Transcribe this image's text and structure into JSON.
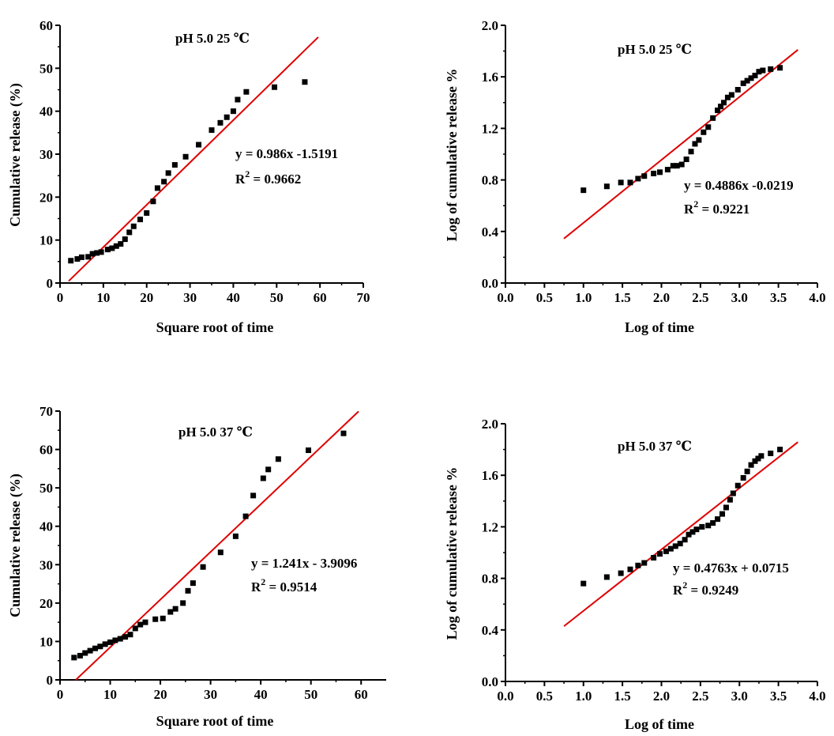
{
  "chart_data": [
    {
      "id": "p1",
      "type": "scatter",
      "title": "pH 5.0 25 ℃",
      "xlabel": "Square root of time",
      "ylabel": "Cumulative release (%)",
      "xlim": [
        0,
        70
      ],
      "ylim": [
        0,
        60
      ],
      "xticks": [
        0,
        10,
        20,
        30,
        40,
        50,
        60,
        70
      ],
      "yticks": [
        0,
        10,
        20,
        30,
        40,
        50,
        60
      ],
      "x_tick_labels": [
        "0",
        "10",
        "20",
        "30",
        "40",
        "50",
        "60",
        "70"
      ],
      "y_tick_labels": [
        "0",
        "10",
        "20",
        "30",
        "40",
        "50",
        "60"
      ],
      "grid": false,
      "points": [
        [
          2.5,
          5.2
        ],
        [
          4,
          5.6
        ],
        [
          5,
          6
        ],
        [
          6.5,
          6.1
        ],
        [
          7.5,
          6.8
        ],
        [
          8.5,
          7
        ],
        [
          9.5,
          7.2
        ],
        [
          11,
          7.8
        ],
        [
          12,
          8.1
        ],
        [
          13,
          8.6
        ],
        [
          14,
          9.1
        ],
        [
          15,
          10.2
        ],
        [
          16,
          11.8
        ],
        [
          17,
          13.2
        ],
        [
          18.5,
          14.8
        ],
        [
          20,
          16.3
        ],
        [
          21.5,
          19
        ],
        [
          22.5,
          22.1
        ],
        [
          24,
          23.6
        ],
        [
          25,
          25.6
        ],
        [
          26.5,
          27.5
        ],
        [
          29,
          29.4
        ],
        [
          32,
          32.2
        ],
        [
          35,
          35.6
        ],
        [
          37,
          37.3
        ],
        [
          38.5,
          38.6
        ],
        [
          40,
          40
        ],
        [
          41,
          42.7
        ],
        [
          43,
          44.5
        ],
        [
          49.5,
          45.6
        ],
        [
          56.5,
          46.8
        ]
      ],
      "fit_line": {
        "slope": 0.986,
        "intercept": -1.5191,
        "x_range": [
          2,
          59.6
        ]
      },
      "annotation": {
        "equation": "y = 0.986x -1.5191",
        "r2_prefix": "R",
        "r2_exp": "2",
        "r2_suffix": " = 0.9662"
      }
    },
    {
      "id": "p2",
      "type": "scatter",
      "title": "pH 5.0 25 ℃",
      "xlabel": "Log of time",
      "ylabel": "Log of cumulative release %",
      "xlim": [
        0,
        4
      ],
      "ylim": [
        0,
        2
      ],
      "xticks": [
        0,
        0.5,
        1,
        1.5,
        2,
        2.5,
        3,
        3.5,
        4
      ],
      "yticks": [
        0,
        0.4,
        0.8,
        1.2,
        1.6,
        2
      ],
      "x_tick_labels": [
        "0.0",
        "0.5",
        "1.0",
        "1.5",
        "2.0",
        "2.5",
        "3.0",
        "3.5",
        "4.0"
      ],
      "y_tick_labels": [
        "0.0",
        "0.4",
        "0.8",
        "1.2",
        "1.6",
        "2.0"
      ],
      "grid": false,
      "points": [
        [
          1,
          0.72
        ],
        [
          1.3,
          0.75
        ],
        [
          1.48,
          0.78
        ],
        [
          1.6,
          0.78
        ],
        [
          1.7,
          0.81
        ],
        [
          1.78,
          0.83
        ],
        [
          1.9,
          0.85
        ],
        [
          1.98,
          0.86
        ],
        [
          2.08,
          0.88
        ],
        [
          2.15,
          0.91
        ],
        [
          2.2,
          0.91
        ],
        [
          2.26,
          0.92
        ],
        [
          2.32,
          0.96
        ],
        [
          2.38,
          1.02
        ],
        [
          2.43,
          1.08
        ],
        [
          2.48,
          1.11
        ],
        [
          2.54,
          1.17
        ],
        [
          2.6,
          1.21
        ],
        [
          2.66,
          1.28
        ],
        [
          2.72,
          1.34
        ],
        [
          2.76,
          1.37
        ],
        [
          2.8,
          1.4
        ],
        [
          2.85,
          1.44
        ],
        [
          2.9,
          1.46
        ],
        [
          2.98,
          1.5
        ],
        [
          3.05,
          1.55
        ],
        [
          3.1,
          1.57
        ],
        [
          3.15,
          1.59
        ],
        [
          3.2,
          1.61
        ],
        [
          3.25,
          1.64
        ],
        [
          3.3,
          1.65
        ],
        [
          3.4,
          1.66
        ],
        [
          3.52,
          1.67
        ]
      ],
      "fit_line": {
        "slope": 0.4886,
        "intercept": -0.0219,
        "x_range": [
          0.75,
          3.75
        ]
      },
      "annotation": {
        "equation": "y = 0.4886x -0.0219",
        "r2_prefix": "R",
        "r2_exp": "2",
        "r2_suffix": " = 0.9221"
      }
    },
    {
      "id": "p3",
      "type": "scatter",
      "title": "pH 5.0 37 ℃",
      "xlabel": "Square root of time",
      "ylabel": "Cumulative release (%)",
      "xlim": [
        0,
        65
      ],
      "ylim": [
        0,
        70
      ],
      "xticks": [
        0,
        10,
        20,
        30,
        40,
        50,
        60
      ],
      "yticks": [
        0,
        10,
        20,
        30,
        40,
        50,
        60,
        70
      ],
      "x_tick_labels": [
        "0",
        "10",
        "20",
        "30",
        "40",
        "50",
        "60"
      ],
      "y_tick_labels": [
        "0",
        "10",
        "20",
        "30",
        "40",
        "50",
        "60",
        "70"
      ],
      "grid": false,
      "points": [
        [
          2.8,
          5.8
        ],
        [
          4,
          6.3
        ],
        [
          5,
          7
        ],
        [
          6,
          7.6
        ],
        [
          7,
          8.2
        ],
        [
          8,
          8.7
        ],
        [
          9,
          9.3
        ],
        [
          10,
          9.8
        ],
        [
          11,
          10.3
        ],
        [
          12,
          10.7
        ],
        [
          13,
          11.2
        ],
        [
          14,
          11.8
        ],
        [
          15,
          13.4
        ],
        [
          16,
          14.4
        ],
        [
          17,
          15
        ],
        [
          19,
          15.8
        ],
        [
          20.5,
          16
        ],
        [
          22,
          17.7
        ],
        [
          23,
          18.5
        ],
        [
          24.5,
          20
        ],
        [
          25.5,
          23.2
        ],
        [
          26.5,
          25.2
        ],
        [
          28.5,
          29.4
        ],
        [
          32,
          33.2
        ],
        [
          35,
          37.4
        ],
        [
          37,
          42.6
        ],
        [
          38.5,
          48
        ],
        [
          40.5,
          52.5
        ],
        [
          41.5,
          54.8
        ],
        [
          43.5,
          57.5
        ],
        [
          49.5,
          59.8
        ],
        [
          56.5,
          64.2
        ]
      ],
      "fit_line": {
        "slope": 1.241,
        "intercept": -3.9096,
        "x_range": [
          3.15,
          59.5
        ]
      },
      "annotation": {
        "equation": "y = 1.241x - 3.9096",
        "r2_prefix": "R",
        "r2_exp": "2",
        "r2_suffix": " = 0.9514"
      }
    },
    {
      "id": "p4",
      "type": "scatter",
      "title": "pH 5.0 37 ℃",
      "xlabel": "Log of time",
      "ylabel": "Log of cumulative release %",
      "xlim": [
        0,
        4
      ],
      "ylim": [
        0,
        2
      ],
      "xticks": [
        0,
        0.5,
        1,
        1.5,
        2,
        2.5,
        3,
        3.5,
        4
      ],
      "yticks": [
        0,
        0.4,
        0.8,
        1.2,
        1.6,
        2
      ],
      "x_tick_labels": [
        "0.0",
        "0.5",
        "1.0",
        "1.5",
        "2.0",
        "2.5",
        "3.0",
        "3.5",
        "4.0"
      ],
      "y_tick_labels": [
        "0.0",
        "0.4",
        "0.8",
        "1.2",
        "1.6",
        "2.0"
      ],
      "grid": false,
      "points": [
        [
          1,
          0.76
        ],
        [
          1.3,
          0.81
        ],
        [
          1.48,
          0.84
        ],
        [
          1.6,
          0.87
        ],
        [
          1.7,
          0.9
        ],
        [
          1.78,
          0.92
        ],
        [
          1.9,
          0.96
        ],
        [
          1.98,
          0.99
        ],
        [
          2.06,
          1.01
        ],
        [
          2.12,
          1.03
        ],
        [
          2.18,
          1.05
        ],
        [
          2.24,
          1.07
        ],
        [
          2.3,
          1.1
        ],
        [
          2.35,
          1.14
        ],
        [
          2.4,
          1.16
        ],
        [
          2.45,
          1.18
        ],
        [
          2.52,
          1.2
        ],
        [
          2.6,
          1.21
        ],
        [
          2.66,
          1.23
        ],
        [
          2.72,
          1.26
        ],
        [
          2.78,
          1.3
        ],
        [
          2.83,
          1.35
        ],
        [
          2.88,
          1.41
        ],
        [
          2.92,
          1.46
        ],
        [
          2.98,
          1.52
        ],
        [
          3.05,
          1.58
        ],
        [
          3.1,
          1.63
        ],
        [
          3.15,
          1.68
        ],
        [
          3.2,
          1.71
        ],
        [
          3.24,
          1.73
        ],
        [
          3.28,
          1.75
        ],
        [
          3.4,
          1.77
        ],
        [
          3.52,
          1.8
        ]
      ],
      "fit_line": {
        "slope": 0.4763,
        "intercept": 0.0715,
        "x_range": [
          0.75,
          3.75
        ]
      },
      "annotation": {
        "equation": "y = 0.4763x + 0.0715",
        "r2_prefix": "R",
        "r2_exp": "2",
        "r2_suffix": " = 0.9249"
      }
    }
  ],
  "colors": {
    "points": "#000000",
    "fit_line": "#e00000",
    "axis": "#000000"
  }
}
